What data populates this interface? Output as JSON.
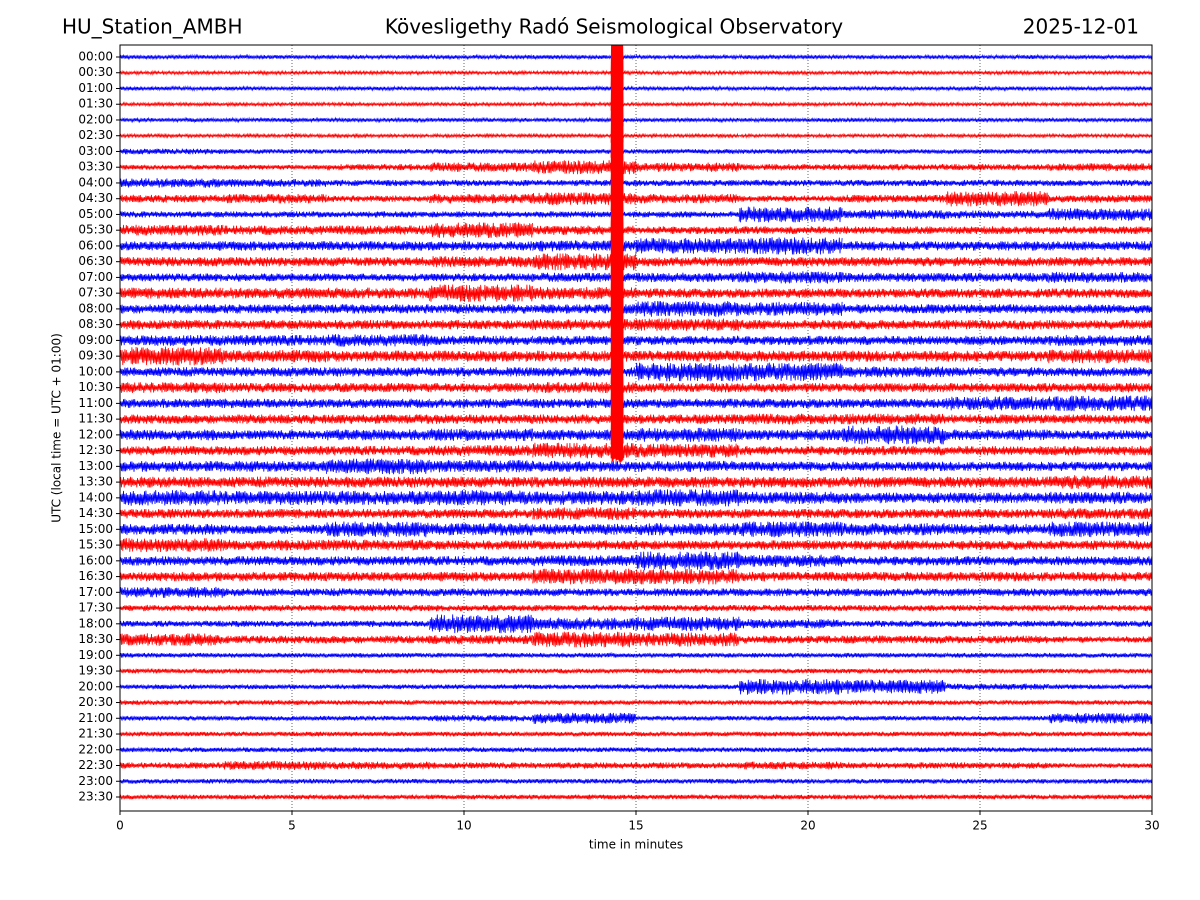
{
  "chart_data": {
    "type": "helicorder",
    "title": "Kövesligethy Radó Seismological Observatory",
    "station": "HU_Station_AMBH",
    "date": "2025-12-01",
    "xlabel": "time in minutes",
    "ylabel": "UTC (local time = UTC + 01:00)",
    "xlim": [
      0,
      30
    ],
    "xticks": [
      0,
      5,
      10,
      15,
      20,
      25,
      30
    ],
    "grid": true,
    "colors": [
      "#0000ff",
      "#ff0000"
    ],
    "categories": [
      "00:00",
      "00:30",
      "01:00",
      "01:30",
      "02:00",
      "02:30",
      "03:00",
      "03:30",
      "04:00",
      "04:30",
      "05:00",
      "05:30",
      "06:00",
      "06:30",
      "07:00",
      "07:30",
      "08:00",
      "08:30",
      "09:00",
      "09:30",
      "10:00",
      "10:30",
      "11:00",
      "11:30",
      "12:00",
      "12:30",
      "13:00",
      "13:30",
      "14:00",
      "14:30",
      "15:00",
      "15:30",
      "16:00",
      "16:30",
      "17:00",
      "17:30",
      "18:00",
      "18:30",
      "19:00",
      "19:30",
      "20:00",
      "20:30",
      "21:00",
      "21:30",
      "22:00",
      "22:30",
      "23:00",
      "23:30"
    ],
    "rows": [
      [
        0.12,
        0.12,
        0.12,
        0.12,
        0.12,
        0.12,
        0.12,
        0.12,
        0.12,
        0.12
      ],
      [
        0.1,
        0.1,
        0.1,
        0.1,
        0.1,
        0.1,
        0.1,
        0.1,
        0.1,
        0.1
      ],
      [
        0.12,
        0.12,
        0.12,
        0.12,
        0.12,
        0.12,
        0.12,
        0.12,
        0.12,
        0.12
      ],
      [
        0.1,
        0.1,
        0.1,
        0.1,
        0.1,
        0.1,
        0.1,
        0.1,
        0.1,
        0.1
      ],
      [
        0.12,
        0.12,
        0.12,
        0.12,
        0.12,
        0.12,
        0.12,
        0.12,
        0.12,
        0.12
      ],
      [
        0.1,
        0.1,
        0.1,
        0.1,
        0.1,
        0.1,
        0.1,
        0.1,
        0.1,
        0.1
      ],
      [
        0.18,
        0.15,
        0.15,
        0.15,
        0.15,
        0.15,
        0.15,
        0.15,
        0.15,
        0.15
      ],
      [
        0.15,
        0.15,
        0.2,
        0.3,
        0.45,
        0.3,
        0.2,
        0.2,
        0.2,
        0.25
      ],
      [
        0.3,
        0.25,
        0.2,
        0.2,
        0.2,
        0.2,
        0.2,
        0.2,
        0.2,
        0.2
      ],
      [
        0.25,
        0.3,
        0.2,
        0.3,
        0.4,
        0.3,
        0.2,
        0.25,
        0.5,
        0.25
      ],
      [
        0.2,
        0.2,
        0.2,
        0.2,
        0.2,
        0.2,
        0.5,
        0.3,
        0.25,
        0.4
      ],
      [
        0.35,
        0.3,
        0.3,
        0.5,
        0.3,
        0.25,
        0.25,
        0.25,
        0.25,
        0.25
      ],
      [
        0.3,
        0.3,
        0.3,
        0.3,
        0.35,
        0.5,
        0.55,
        0.3,
        0.3,
        0.3
      ],
      [
        0.3,
        0.3,
        0.3,
        0.35,
        0.55,
        0.3,
        0.3,
        0.3,
        0.3,
        0.3
      ],
      [
        0.25,
        0.25,
        0.25,
        0.25,
        0.3,
        0.3,
        0.4,
        0.3,
        0.3,
        0.35
      ],
      [
        0.35,
        0.35,
        0.35,
        0.55,
        0.4,
        0.3,
        0.3,
        0.3,
        0.3,
        0.3
      ],
      [
        0.3,
        0.3,
        0.3,
        0.3,
        0.3,
        0.5,
        0.45,
        0.3,
        0.3,
        0.3
      ],
      [
        0.3,
        0.3,
        0.3,
        0.3,
        0.35,
        0.4,
        0.3,
        0.3,
        0.3,
        0.3
      ],
      [
        0.35,
        0.35,
        0.4,
        0.3,
        0.3,
        0.3,
        0.3,
        0.3,
        0.3,
        0.35
      ],
      [
        0.6,
        0.4,
        0.35,
        0.35,
        0.35,
        0.35,
        0.35,
        0.35,
        0.35,
        0.45
      ],
      [
        0.3,
        0.3,
        0.3,
        0.3,
        0.3,
        0.6,
        0.6,
        0.35,
        0.3,
        0.3
      ],
      [
        0.35,
        0.3,
        0.3,
        0.3,
        0.35,
        0.3,
        0.3,
        0.3,
        0.3,
        0.3
      ],
      [
        0.3,
        0.3,
        0.3,
        0.3,
        0.3,
        0.3,
        0.3,
        0.3,
        0.45,
        0.5
      ],
      [
        0.3,
        0.3,
        0.3,
        0.3,
        0.3,
        0.3,
        0.35,
        0.35,
        0.3,
        0.3
      ],
      [
        0.35,
        0.3,
        0.35,
        0.4,
        0.35,
        0.45,
        0.35,
        0.6,
        0.35,
        0.3
      ],
      [
        0.3,
        0.3,
        0.3,
        0.35,
        0.5,
        0.45,
        0.3,
        0.3,
        0.3,
        0.3
      ],
      [
        0.35,
        0.35,
        0.5,
        0.4,
        0.35,
        0.35,
        0.3,
        0.3,
        0.3,
        0.3
      ],
      [
        0.35,
        0.35,
        0.35,
        0.35,
        0.35,
        0.35,
        0.35,
        0.35,
        0.35,
        0.45
      ],
      [
        0.5,
        0.45,
        0.45,
        0.5,
        0.45,
        0.55,
        0.4,
        0.35,
        0.35,
        0.4
      ],
      [
        0.3,
        0.3,
        0.3,
        0.3,
        0.4,
        0.3,
        0.3,
        0.3,
        0.3,
        0.35
      ],
      [
        0.35,
        0.3,
        0.5,
        0.4,
        0.35,
        0.4,
        0.5,
        0.4,
        0.35,
        0.5
      ],
      [
        0.45,
        0.35,
        0.35,
        0.3,
        0.3,
        0.3,
        0.3,
        0.3,
        0.3,
        0.3
      ],
      [
        0.3,
        0.3,
        0.3,
        0.3,
        0.35,
        0.6,
        0.4,
        0.3,
        0.3,
        0.3
      ],
      [
        0.3,
        0.3,
        0.3,
        0.3,
        0.5,
        0.5,
        0.3,
        0.3,
        0.3,
        0.3
      ],
      [
        0.35,
        0.25,
        0.25,
        0.25,
        0.25,
        0.25,
        0.25,
        0.25,
        0.25,
        0.25
      ],
      [
        0.2,
        0.2,
        0.2,
        0.2,
        0.2,
        0.2,
        0.2,
        0.2,
        0.2,
        0.2
      ],
      [
        0.2,
        0.2,
        0.2,
        0.6,
        0.4,
        0.45,
        0.3,
        0.2,
        0.2,
        0.2
      ],
      [
        0.4,
        0.25,
        0.25,
        0.3,
        0.5,
        0.45,
        0.25,
        0.25,
        0.25,
        0.2
      ],
      [
        0.15,
        0.15,
        0.15,
        0.15,
        0.15,
        0.15,
        0.15,
        0.15,
        0.15,
        0.15
      ],
      [
        0.15,
        0.15,
        0.15,
        0.15,
        0.15,
        0.15,
        0.15,
        0.15,
        0.15,
        0.15
      ],
      [
        0.15,
        0.15,
        0.15,
        0.15,
        0.15,
        0.15,
        0.5,
        0.45,
        0.2,
        0.15
      ],
      [
        0.15,
        0.15,
        0.15,
        0.15,
        0.15,
        0.15,
        0.15,
        0.15,
        0.15,
        0.15
      ],
      [
        0.15,
        0.15,
        0.15,
        0.2,
        0.35,
        0.15,
        0.15,
        0.15,
        0.15,
        0.35
      ],
      [
        0.15,
        0.15,
        0.15,
        0.15,
        0.15,
        0.15,
        0.15,
        0.15,
        0.15,
        0.15
      ],
      [
        0.15,
        0.15,
        0.15,
        0.15,
        0.15,
        0.15,
        0.15,
        0.15,
        0.15,
        0.15
      ],
      [
        0.2,
        0.3,
        0.25,
        0.2,
        0.2,
        0.2,
        0.25,
        0.2,
        0.2,
        0.15
      ],
      [
        0.15,
        0.15,
        0.15,
        0.15,
        0.15,
        0.15,
        0.15,
        0.15,
        0.15,
        0.15
      ],
      [
        0.15,
        0.15,
        0.15,
        0.15,
        0.15,
        0.15,
        0.15,
        0.15,
        0.15,
        0.15
      ]
    ],
    "event": {
      "x": 14.45,
      "width": 0.35,
      "color": "#ff0000",
      "values": [
        1.5,
        1.5,
        1.5,
        1.5,
        1.5,
        1.5,
        1.3,
        1.3,
        1.3,
        1.3,
        1.3,
        1.3,
        1.6,
        1.6,
        1.6,
        1.6,
        1.6,
        1.2,
        1.2,
        1.2,
        1.2,
        1.2,
        1.2,
        1.2,
        0.8,
        0.8
      ]
    }
  }
}
